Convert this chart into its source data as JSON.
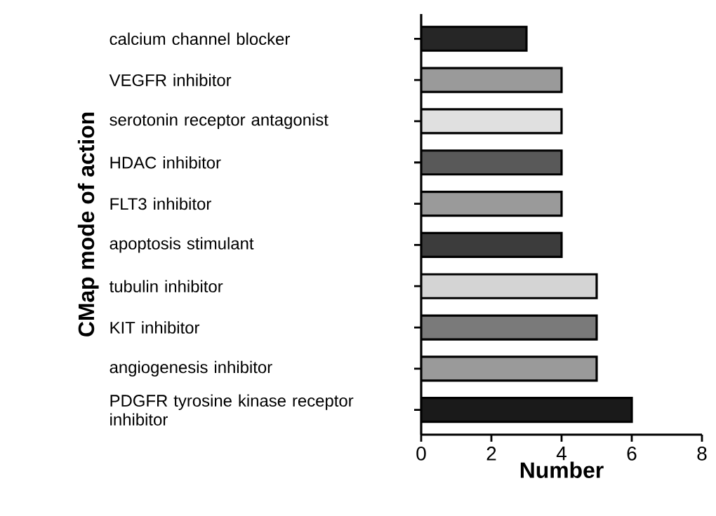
{
  "chart_data": {
    "type": "bar",
    "orientation": "horizontal",
    "categories": [
      "calcium channel blocker",
      "VEGFR inhibitor",
      "serotonin receptor antagonist",
      "HDAC inhibitor",
      "FLT3 inhibitor",
      "apoptosis stimulant",
      "tubulin inhibitor",
      "KIT inhibitor",
      "angiogenesis inhibitor",
      "PDGFR tyrosine kinase receptor inhibitor"
    ],
    "values": [
      3,
      4,
      4,
      4,
      4,
      4,
      5,
      5,
      5,
      6
    ],
    "colors": [
      "#262626",
      "#9a9a9a",
      "#e0e0e0",
      "#595959",
      "#9a9a9a",
      "#3c3c3c",
      "#d4d4d4",
      "#7a7a7a",
      "#9a9a9a",
      "#1a1a1a"
    ],
    "xlim": [
      0,
      8
    ],
    "xticks": [
      0,
      2,
      4,
      6,
      8
    ],
    "xlabel": "Number",
    "ylabel": "CMap mode of action"
  }
}
